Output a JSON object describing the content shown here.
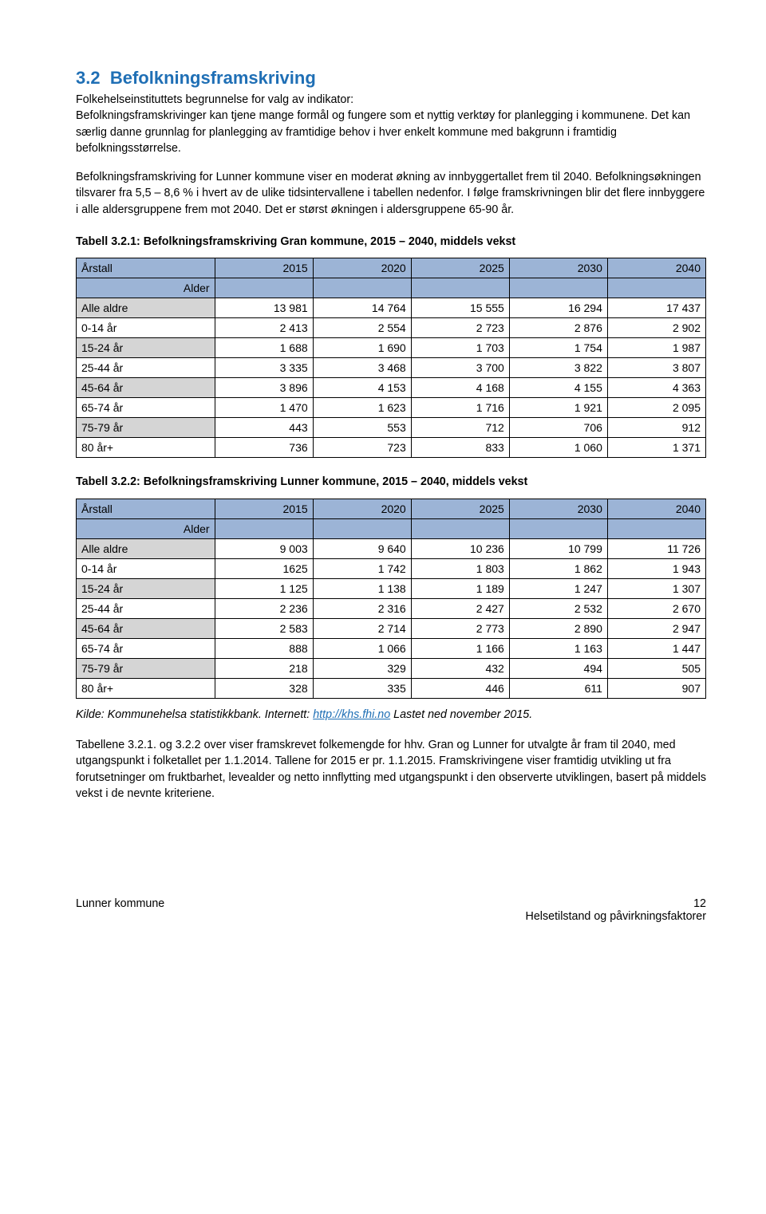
{
  "section": {
    "number": "3.2",
    "title": "Befolkningsframskriving"
  },
  "para1": "Folkehelseinstituttets begrunnelse for valg av indikator:",
  "para2": "Befolkningsframskrivinger kan tjene mange formål og fungere som et nyttig verktøy for planlegging i kommunene. Det kan særlig danne grunnlag for planlegging av framtidige behov i hver enkelt kommune med bakgrunn i framtidig befolkningsstørrelse.",
  "para3": "Befolkningsframskriving for Lunner kommune viser en moderat økning av innbyggertallet frem til 2040. Befolkningsøkningen tilsvarer fra 5,5 – 8,6 % i hvert av de ulike tidsintervallene i tabellen nedenfor. I følge framskrivningen blir det flere innbyggere i alle aldersgruppene frem mot 2040. Det er størst økningen i aldersgruppene 65-90 år.",
  "table1": {
    "caption": "Tabell 3.2.1: Befolkningsframskriving Gran kommune, 2015 – 2040, middels vekst",
    "header_label": "Årstall",
    "years": [
      "2015",
      "2020",
      "2025",
      "2030",
      "2040"
    ],
    "row_label": "Alder",
    "rows": [
      {
        "label": "Alle aldre",
        "vals": [
          "13 981",
          "14 764",
          "15 555",
          "16 294",
          "17 437"
        ],
        "gray": true
      },
      {
        "label": "0-14 år",
        "vals": [
          "2 413",
          "2 554",
          "2 723",
          "2 876",
          "2 902"
        ],
        "gray": false
      },
      {
        "label": "15-24 år",
        "vals": [
          "1 688",
          "1 690",
          "1 703",
          "1 754",
          "1 987"
        ],
        "gray": true
      },
      {
        "label": "25-44 år",
        "vals": [
          "3 335",
          "3 468",
          "3 700",
          "3 822",
          "3 807"
        ],
        "gray": false
      },
      {
        "label": "45-64 år",
        "vals": [
          "3 896",
          "4 153",
          "4 168",
          "4 155",
          "4 363"
        ],
        "gray": true
      },
      {
        "label": "65-74 år",
        "vals": [
          "1 470",
          "1 623",
          "1 716",
          "1 921",
          "2 095"
        ],
        "gray": false
      },
      {
        "label": "75-79 år",
        "vals": [
          "443",
          "553",
          "712",
          "706",
          "912"
        ],
        "gray": true
      },
      {
        "label": "80 år+",
        "vals": [
          "736",
          "723",
          "833",
          "1 060",
          "1 371"
        ],
        "gray": false
      }
    ]
  },
  "table2": {
    "caption": "Tabell 3.2.2: Befolkningsframskriving Lunner kommune, 2015 – 2040, middels vekst",
    "header_label": "Årstall",
    "years": [
      "2015",
      "2020",
      "2025",
      "2030",
      "2040"
    ],
    "row_label": "Alder",
    "rows": [
      {
        "label": "Alle aldre",
        "vals": [
          "9 003",
          "9 640",
          "10 236",
          "10 799",
          "11 726"
        ],
        "gray": true
      },
      {
        "label": "0-14 år",
        "vals": [
          "1625",
          "1 742",
          "1 803",
          "1 862",
          "1 943"
        ],
        "gray": false
      },
      {
        "label": "15-24 år",
        "vals": [
          "1 125",
          "1 138",
          "1 189",
          "1 247",
          "1 307"
        ],
        "gray": true
      },
      {
        "label": "25-44 år",
        "vals": [
          "2 236",
          "2 316",
          "2 427",
          "2 532",
          "2 670"
        ],
        "gray": false
      },
      {
        "label": "45-64 år",
        "vals": [
          "2 583",
          "2 714",
          "2 773",
          "2 890",
          "2 947"
        ],
        "gray": true
      },
      {
        "label": "65-74 år",
        "vals": [
          "888",
          "1 066",
          "1 166",
          "1 163",
          "1 447"
        ],
        "gray": false
      },
      {
        "label": "75-79 år",
        "vals": [
          "218",
          "329",
          "432",
          "494",
          "505"
        ],
        "gray": true
      },
      {
        "label": "80 år+",
        "vals": [
          "328",
          "335",
          "446",
          "611",
          "907"
        ],
        "gray": false
      }
    ]
  },
  "source": {
    "prefix": "Kilde: Kommunehelsa statistikkbank. Internett: ",
    "link_text": "http://khs.fhi.no",
    "suffix": " Lastet ned november 2015."
  },
  "para4": "Tabellene 3.2.1. og 3.2.2 over viser framskrevet folkemengde for hhv. Gran og Lunner for utvalgte år fram til 2040, med utgangspunkt i folketallet per 1.1.2014. Tallene for 2015 er pr. 1.1.2015. Framskrivingene viser framtidig utvikling ut fra forutsetninger om fruktbarhet, levealder og netto innflytting med utgangspunkt i den observerte utviklingen, basert på middels vekst i de nevnte kriteriene.",
  "footer": {
    "left": "Lunner kommune",
    "right_line1": "12",
    "right_line2": "Helsetilstand og påvirkningsfaktorer"
  },
  "colors": {
    "heading": "#1f6fb5",
    "table_header_bg": "#9cb4d6",
    "gray_bg": "#d5d5d5",
    "border": "#000000",
    "text": "#000000",
    "link": "#1f6fb5",
    "background": "#ffffff"
  },
  "column_widths_pct": [
    22,
    15.6,
    15.6,
    15.6,
    15.6,
    15.6
  ]
}
